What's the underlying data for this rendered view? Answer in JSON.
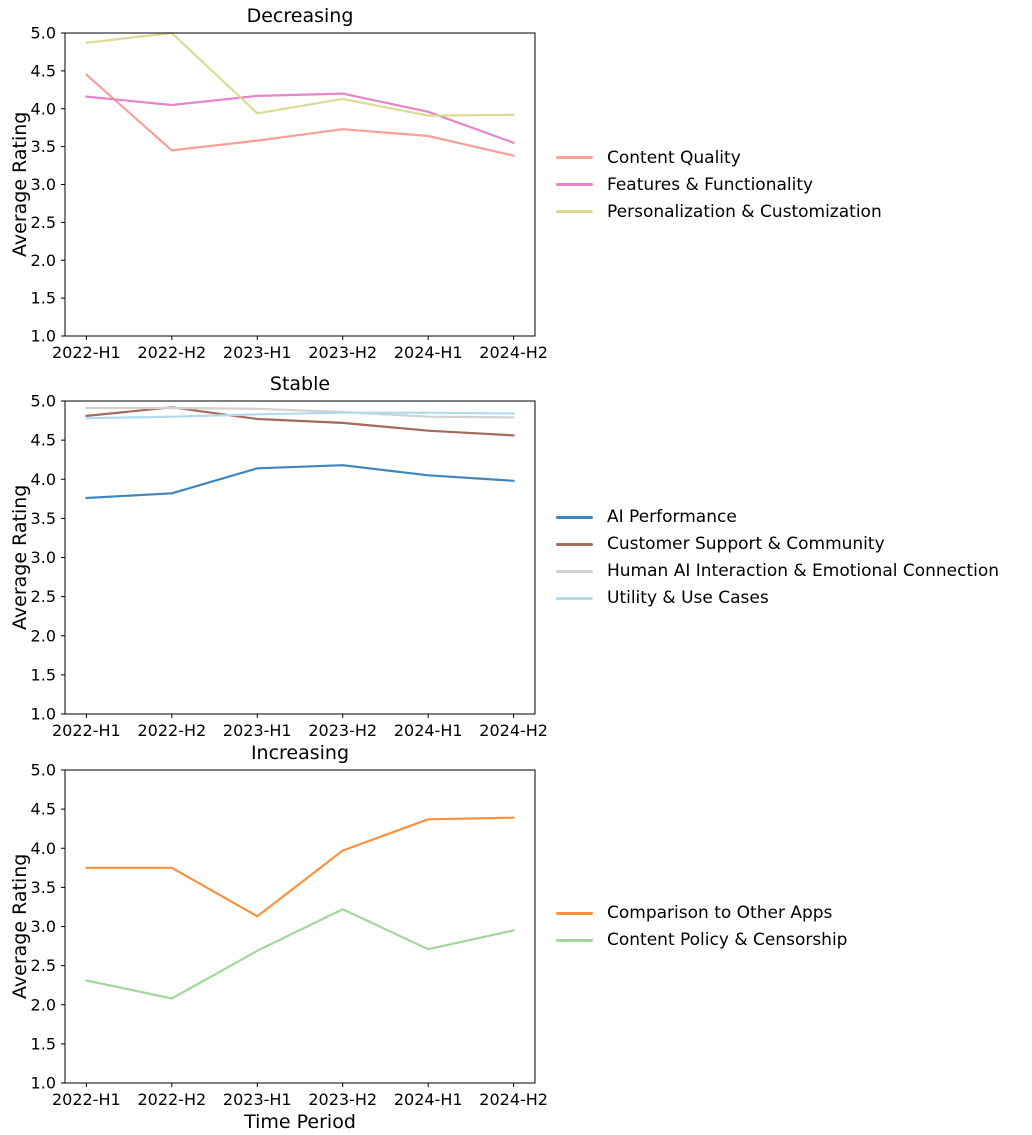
{
  "background_color": "#ffffff",
  "axis_color": "#000000",
  "chart_data": [
    {
      "type": "line",
      "title": "Decreasing",
      "xlabel": "",
      "ylabel": "Average Rating",
      "categories": [
        "2022-H1",
        "2022-H2",
        "2023-H1",
        "2023-H2",
        "2024-H1",
        "2024-H2"
      ],
      "ylim": [
        1.0,
        5.0
      ],
      "ytick_interval": 0.5,
      "grid": false,
      "legend_position": "center-right-outside",
      "series": [
        {
          "name": "Content Quality",
          "color": "#f99f9a",
          "values": [
            4.45,
            3.45,
            3.58,
            3.73,
            3.64,
            3.38
          ]
        },
        {
          "name": "Features & Functionality",
          "color": "#e685c8",
          "values": [
            4.16,
            4.05,
            4.17,
            4.2,
            3.96,
            3.55
          ]
        },
        {
          "name": "Personalization & Customization",
          "color": "#dcdb93",
          "values": [
            4.87,
            5.0,
            3.94,
            4.13,
            3.91,
            3.92
          ]
        }
      ]
    },
    {
      "type": "line",
      "title": "Stable",
      "xlabel": "",
      "ylabel": "Average Rating",
      "categories": [
        "2022-H1",
        "2022-H2",
        "2023-H1",
        "2023-H2",
        "2024-H1",
        "2024-H2"
      ],
      "ylim": [
        1.0,
        5.0
      ],
      "ytick_interval": 0.5,
      "grid": false,
      "legend_position": "center-right-outside",
      "series": [
        {
          "name": "AI Performance",
          "color": "#3e86c0",
          "values": [
            3.76,
            3.82,
            4.14,
            4.18,
            4.05,
            3.98
          ]
        },
        {
          "name": "Customer Support & Community",
          "color": "#a46a5d",
          "values": [
            4.81,
            4.92,
            4.77,
            4.72,
            4.62,
            4.56
          ]
        },
        {
          "name": "Human AI Interaction & Emotional Connection",
          "color": "#d2d1cf",
          "values": [
            4.91,
            4.91,
            4.9,
            4.86,
            4.8,
            4.79
          ]
        },
        {
          "name": "Utility & Use Cases",
          "color": "#aedced",
          "values": [
            4.78,
            4.8,
            4.83,
            4.85,
            4.85,
            4.84
          ]
        }
      ]
    },
    {
      "type": "line",
      "title": "Increasing",
      "xlabel": "Time Period",
      "ylabel": "Average Rating",
      "categories": [
        "2022-H1",
        "2022-H2",
        "2023-H1",
        "2023-H2",
        "2024-H1",
        "2024-H2"
      ],
      "ylim": [
        1.0,
        5.0
      ],
      "ytick_interval": 0.5,
      "grid": false,
      "legend_position": "center-right-outside",
      "series": [
        {
          "name": "Comparison to Other Apps",
          "color": "#f9923f",
          "values": [
            3.75,
            3.75,
            3.13,
            3.97,
            4.37,
            4.39
          ]
        },
        {
          "name": "Content Policy & Censorship",
          "color": "#a2d89b",
          "values": [
            2.31,
            2.08,
            2.69,
            3.22,
            2.71,
            2.95
          ]
        }
      ]
    }
  ]
}
